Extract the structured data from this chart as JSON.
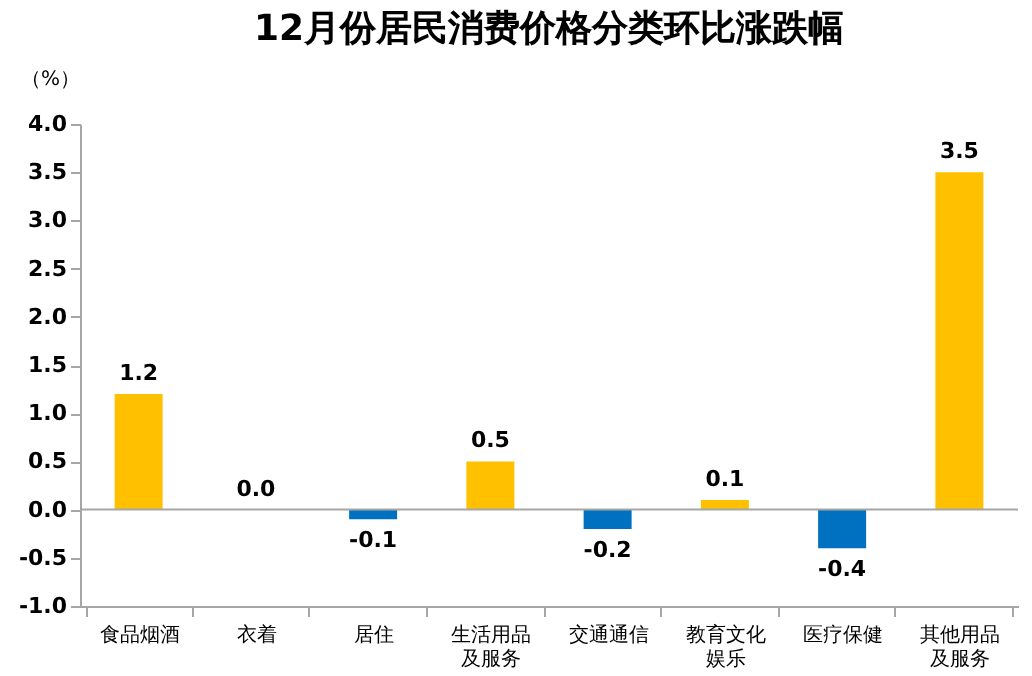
{
  "chart_data": {
    "type": "bar",
    "title": "12月份居民消费价格分类环比涨跌幅",
    "ylabel": "（%）",
    "categories": [
      "食品烟酒",
      "衣着",
      "居住",
      "生活用品及服务",
      "交通通信",
      "教育文化娱乐",
      "医疗保健",
      "其他用品及服务"
    ],
    "values": [
      1.2,
      0.0,
      -0.1,
      0.5,
      -0.2,
      0.1,
      -0.4,
      3.5
    ],
    "colors": [
      "#ffc000",
      "#ffc000",
      "#0070c0",
      "#ffc000",
      "#0070c0",
      "#ffc000",
      "#0070c0",
      "#ffc000"
    ],
    "value_labels": [
      "1.2",
      "0.0",
      "-0.1",
      "0.5",
      "-0.2",
      "0.1",
      "-0.4",
      "3.5"
    ],
    "ylim": [
      -1.0,
      4.0
    ],
    "yticks": [
      {
        "value": -1.0,
        "label": "-1.0"
      },
      {
        "value": -0.5,
        "label": "-0.5"
      },
      {
        "value": 0.0,
        "label": "0.0"
      },
      {
        "value": 0.5,
        "label": "0.5"
      },
      {
        "value": 1.0,
        "label": "1.0"
      },
      {
        "value": 1.5,
        "label": "1.5"
      },
      {
        "value": 2.0,
        "label": "2.0"
      },
      {
        "value": 2.5,
        "label": "2.5"
      },
      {
        "value": 3.0,
        "label": "3.0"
      },
      {
        "value": 3.5,
        "label": "3.5"
      },
      {
        "value": 4.0,
        "label": "4.0"
      }
    ],
    "ref_lines": [
      {
        "axis": "y",
        "value": 0.0,
        "color": "#a6a6a6"
      }
    ],
    "grid": false
  }
}
